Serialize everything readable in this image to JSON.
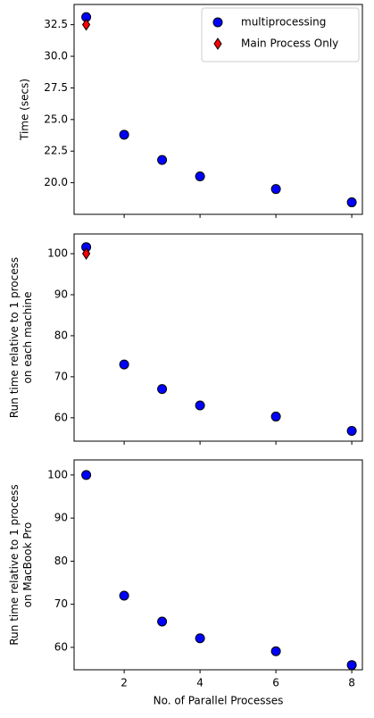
{
  "chart_data": [
    {
      "type": "scatter",
      "ylabel": [
        "Time (secs)"
      ],
      "xlim": [
        0.68,
        8.28
      ],
      "xticks": [
        2,
        4,
        6,
        8
      ],
      "xticklabels": false,
      "ylim": [
        17.5,
        34.1
      ],
      "yticks": [
        {
          "value": 20,
          "label": "20.0"
        },
        {
          "value": 22.5,
          "label": "22.5"
        },
        {
          "value": 25,
          "label": "25.0"
        },
        {
          "value": 27.5,
          "label": "27.5"
        },
        {
          "value": 30,
          "label": "30.0"
        },
        {
          "value": 32.5,
          "label": "32.5"
        }
      ],
      "legend": "upper right",
      "series": [
        {
          "name": "multiprocessing",
          "color": "#0000ff",
          "marker": "circle",
          "x": [
            1,
            2,
            3,
            4,
            6,
            8
          ],
          "values": [
            33.1,
            23.8,
            21.8,
            20.5,
            19.5,
            18.45
          ]
        },
        {
          "name": "Main Process Only",
          "color": "#ff0000",
          "marker": "diamond",
          "x": [
            1
          ],
          "values": [
            32.5
          ]
        }
      ]
    },
    {
      "type": "scatter",
      "ylabel": [
        "Run time relative to 1 process",
        "on each machine"
      ],
      "xlim": [
        0.68,
        8.28
      ],
      "xticks": [
        2,
        4,
        6,
        8
      ],
      "xticklabels": false,
      "ylim": [
        54.3,
        104.8
      ],
      "yticks": [
        60,
        70,
        80,
        90,
        100
      ],
      "series": [
        {
          "color": "#0000ff",
          "marker": "circle",
          "x": [
            1,
            2,
            3,
            4,
            6,
            8
          ],
          "values": [
            101.6,
            73,
            67,
            63,
            60.3,
            56.8
          ]
        },
        {
          "color": "#ff0000",
          "marker": "diamond",
          "x": [
            1
          ],
          "values": [
            100
          ]
        }
      ]
    },
    {
      "type": "scatter",
      "ylabel": [
        "Run time relative to 1 process",
        "on MacBook Pro"
      ],
      "xlabel": "No. of Parallel Processes",
      "xlim": [
        0.68,
        8.28
      ],
      "xticks": [
        2,
        4,
        6,
        8
      ],
      "xticklabels": true,
      "ylim": [
        54.8,
        103.5
      ],
      "yticks": [
        60,
        70,
        80,
        90,
        100
      ],
      "series": [
        {
          "color": "#0000ff",
          "marker": "circle",
          "x": [
            1,
            2,
            3,
            4,
            6,
            8
          ],
          "values": [
            100,
            72,
            66,
            62.1,
            59.1,
            55.9
          ]
        }
      ]
    }
  ]
}
